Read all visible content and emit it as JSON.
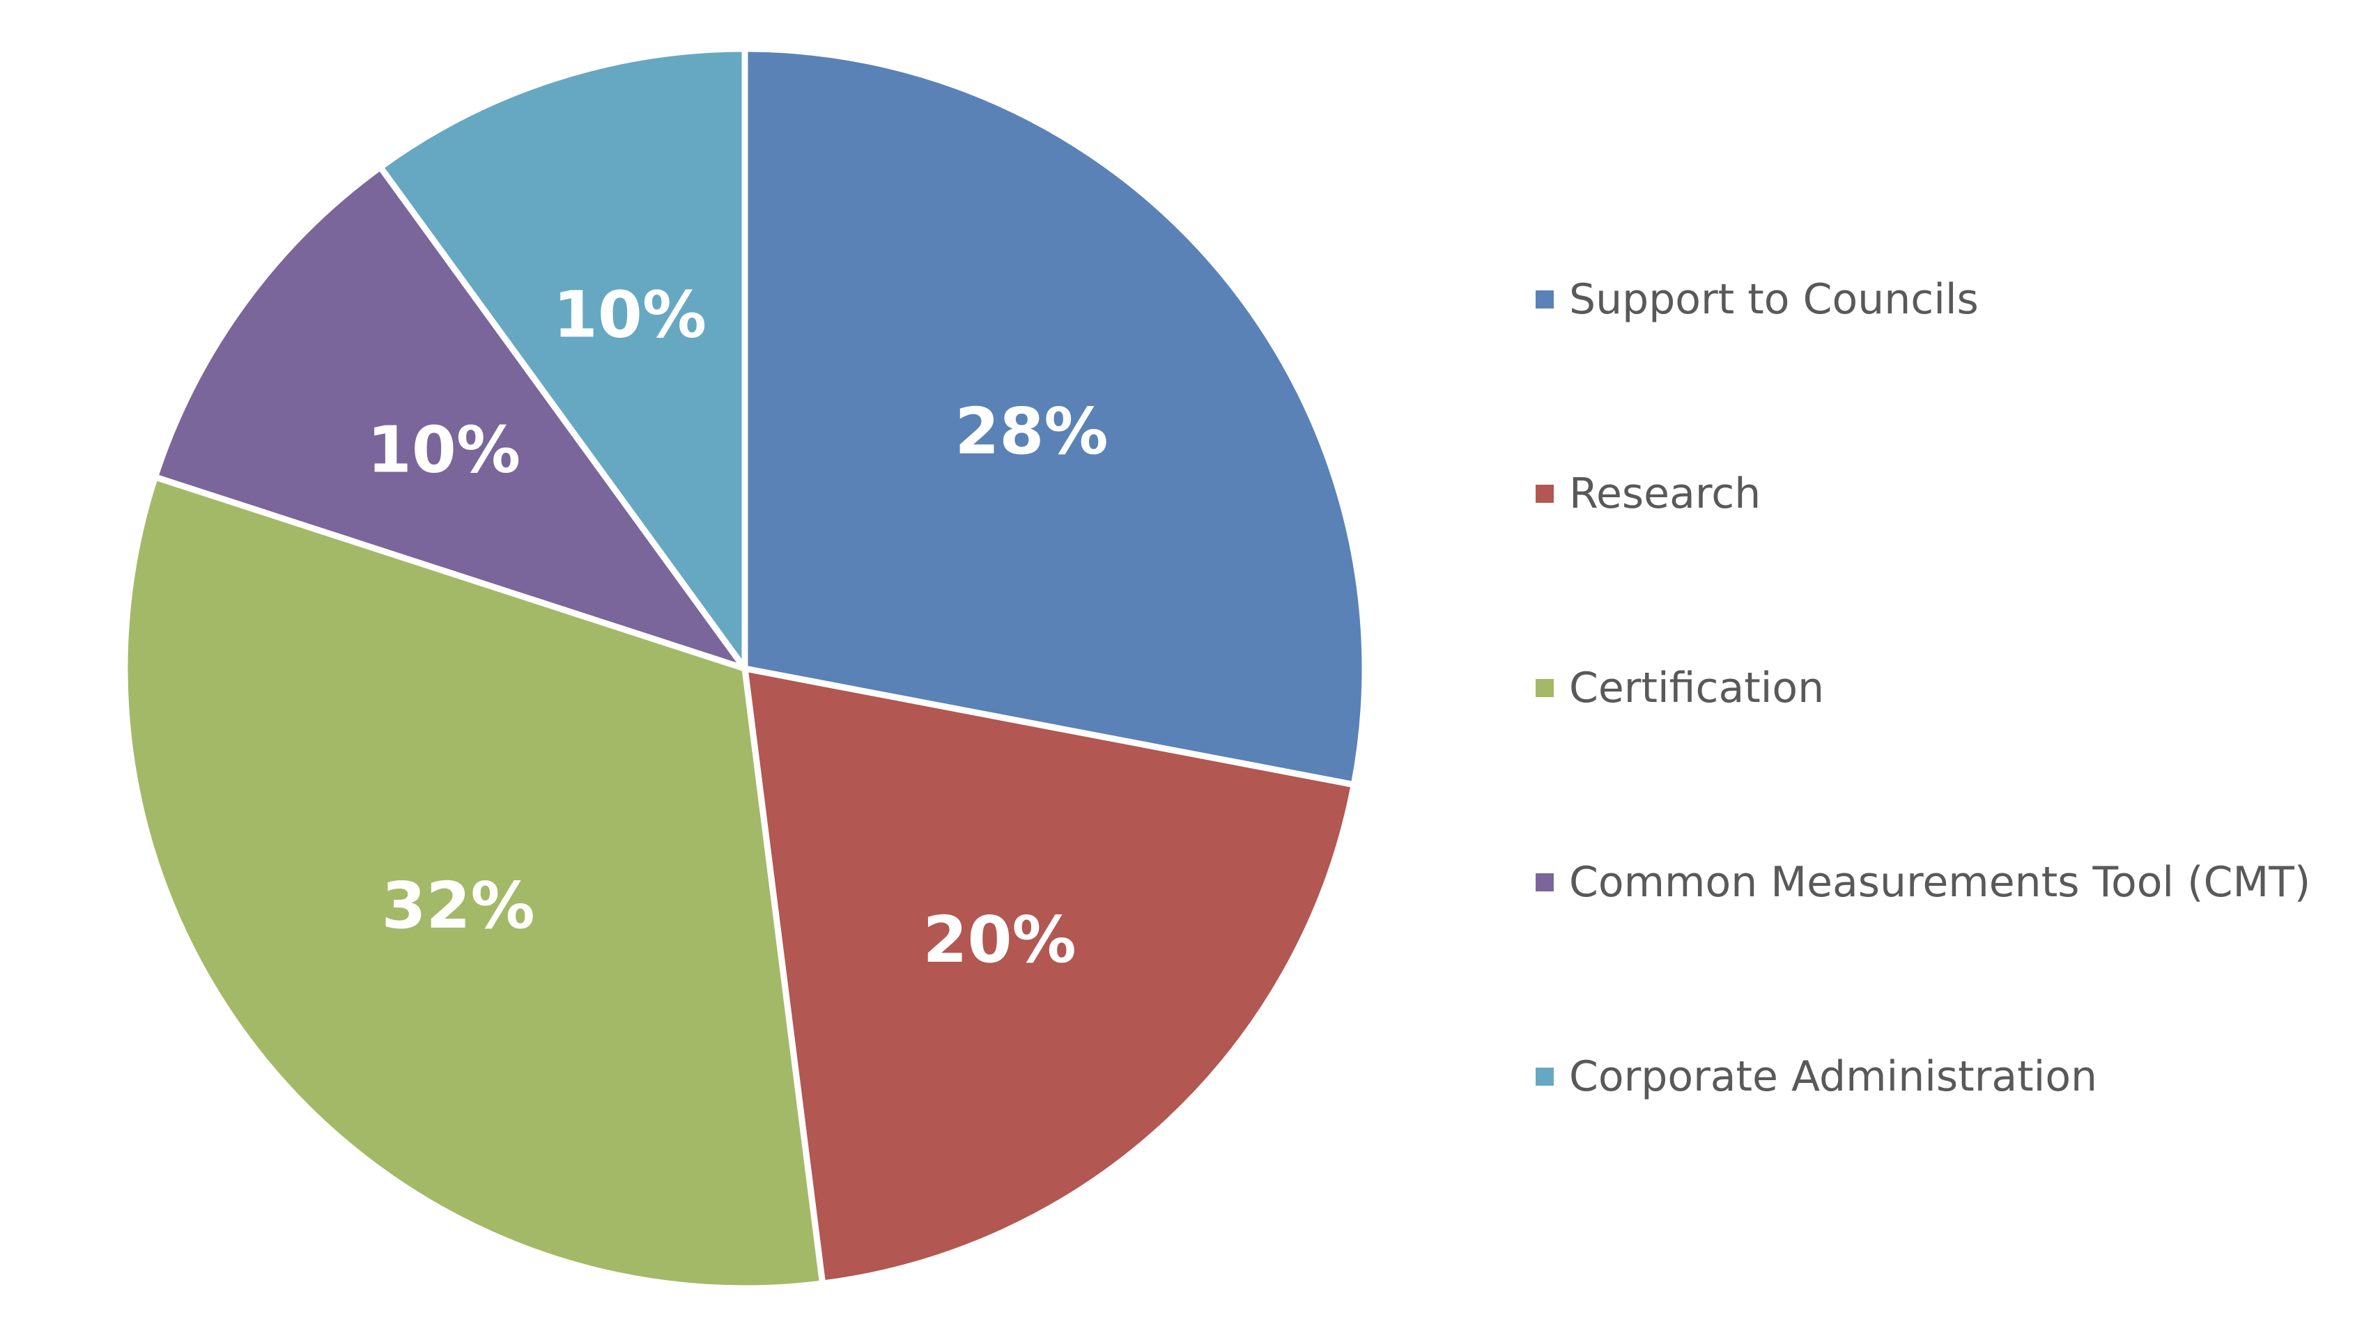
{
  "chart_data": {
    "type": "pie",
    "categories": [
      "Support to Councils",
      "Research",
      "Certification",
      "Common Measurements Tool (CMT)",
      "Corporate Administration"
    ],
    "values": [
      28,
      20,
      32,
      10,
      10
    ],
    "data_labels": [
      "28%",
      "20%",
      "32%",
      "10%",
      "10%"
    ],
    "colors": [
      "#5A82B6",
      "#B25751",
      "#A3B967",
      "#7A669A",
      "#66A8C1"
    ],
    "legend_placement": "right",
    "start_angle_deg": 0,
    "direction": "clockwise"
  }
}
